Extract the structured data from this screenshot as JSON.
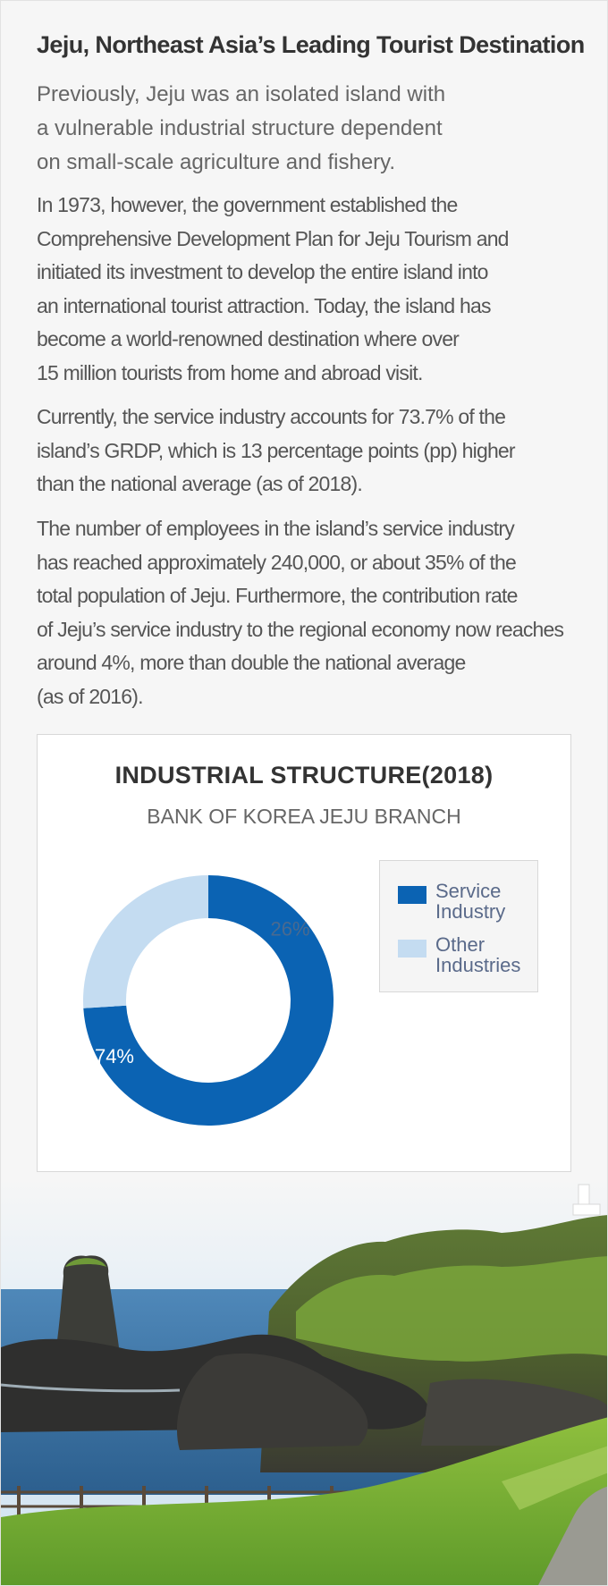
{
  "header": {
    "title": "Jeju, Northeast Asia’s Leading Tourist Destination"
  },
  "intro": {
    "lines": [
      "Previously, Jeju was an isolated island with",
      " a vulnerable industrial structure dependent",
      "on small-scale agriculture and fishery."
    ]
  },
  "paragraphs": [
    {
      "lines": [
        "In 1973, however, the government established  the",
        "Comprehensive Development Plan for Jeju Tourism and",
        "initiated its investment to develop the entire island into",
        "an international tourist attraction.  Today, the island has",
        "become a world-renowned destination where over",
        "15 million tourists from home and abroad visit."
      ]
    },
    {
      "lines": [
        "Currently, the service industry accounts for 73.7%  of the",
        "island’s GRDP, which is 13 percentage points (pp) higher",
        "than the national average  (as of 2018)."
      ]
    },
    {
      "lines": [
        "The number of employees in the island’s service industry",
        "has reached approximately 240,000, or about 35% of the",
        "total population of Jeju. Furthermore, the contribution rate",
        "of Jeju’s service industry to the regional economy now reaches",
        " around 4%, more than double the national average",
        "(as of 2016)."
      ]
    }
  ],
  "chart_data": {
    "type": "pie",
    "title": "INDUSTRIAL STRUCTURE(2018)",
    "subtitle": "BANK OF KOREA JEJU BRANCH",
    "donut": true,
    "slices": [
      {
        "label": "Service Industry",
        "legend_lines": [
          "Service",
          "Industry"
        ],
        "value": 74,
        "data_label": "74%",
        "color": "#0b63b3"
      },
      {
        "label": "Other Industries",
        "legend_lines": [
          "Other",
          "Industries"
        ],
        "value": 26,
        "data_label": "26%",
        "color": "#c4dcf1"
      }
    ],
    "legend_placement": "right"
  },
  "photo": {
    "icon": "coastal-landscape-image"
  }
}
